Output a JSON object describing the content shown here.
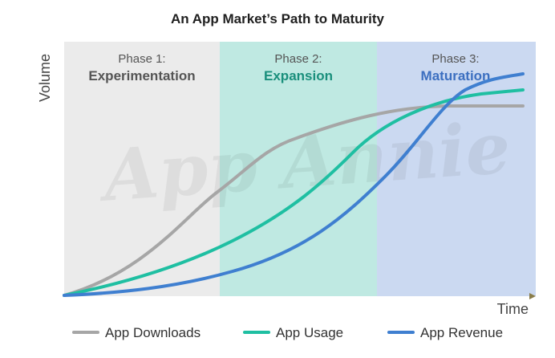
{
  "chart_data": {
    "type": "line",
    "title": "An App Market’s Path to Maturity",
    "xlabel": "Time",
    "ylabel": "Volume",
    "watermark": "App Annie",
    "phases": [
      {
        "label": "Phase 1:",
        "name": "Experimentation",
        "color": "#ebebeb",
        "name_color": "#555555"
      },
      {
        "label": "Phase 2:",
        "name": "Expansion",
        "color": "#bfe9e2",
        "name_color": "#1a8f7c"
      },
      {
        "label": "Phase 3:",
        "name": "Maturation",
        "color": "#cbd9f1",
        "name_color": "#3c6fc0"
      }
    ],
    "series": [
      {
        "name": "App Downloads",
        "color": "#a6a6a6"
      },
      {
        "name": "App Usage",
        "color": "#1fbfa2"
      },
      {
        "name": "App Revenue",
        "color": "#3f7fd0"
      }
    ]
  }
}
